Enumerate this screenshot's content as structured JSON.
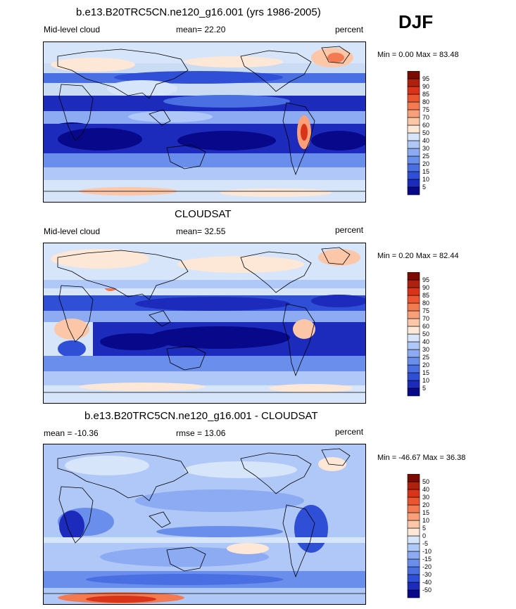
{
  "season": "DJF",
  "panels": [
    {
      "title": "b.e13.B20TRC5CN.ne120_g16.001 (yrs 1986-2005)",
      "left_label": "Mid-level cloud",
      "stat_label": "mean=  22.20",
      "units": "percent",
      "minmax": "Min =   0.00 Max =  83.48"
    },
    {
      "title": "CLOUDSAT",
      "left_label": "Mid-level cloud",
      "stat_label": "mean=  32.55",
      "units": "percent",
      "minmax": "Min =   0.20 Max =  82.44"
    },
    {
      "title": "b.e13.B20TRC5CN.ne120_g16.001 - CLOUDSAT",
      "left_label": "mean = -10.36",
      "stat_label": "rmse =  13.06",
      "units": "percent",
      "minmax": "Min = -46.67 Max =  36.38"
    }
  ],
  "chart_data": [
    {
      "type": "heatmap",
      "title": "b.e13.B20TRC5CN.ne120_g16.001 (yrs 1986-2005)",
      "variable": "Mid-level cloud",
      "units": "percent",
      "mean": 22.2,
      "min": 0.0,
      "max": 83.48,
      "colorbar_levels": [
        "5",
        "10",
        "15",
        "20",
        "25",
        "30",
        "40",
        "50",
        "60",
        "70",
        "75",
        "80",
        "85",
        "90",
        "95"
      ],
      "colorbar_colors": [
        "#08088a",
        "#1c2bbb",
        "#2f4fd6",
        "#4a6fe3",
        "#6a8eec",
        "#8cabf2",
        "#b0c8f7",
        "#d7e5fb",
        "#fde7d6",
        "#fcc7a8",
        "#f9a07a",
        "#f47a52",
        "#ec552f",
        "#d9341a",
        "#b0200e",
        "#7a0a02"
      ]
    },
    {
      "type": "heatmap",
      "title": "CLOUDSAT",
      "variable": "Mid-level cloud",
      "units": "percent",
      "mean": 32.55,
      "min": 0.2,
      "max": 82.44,
      "colorbar_levels": [
        "5",
        "10",
        "15",
        "20",
        "25",
        "30",
        "40",
        "50",
        "60",
        "70",
        "75",
        "80",
        "85",
        "90",
        "95"
      ],
      "colorbar_colors": [
        "#08088a",
        "#1c2bbb",
        "#2f4fd6",
        "#4a6fe3",
        "#6a8eec",
        "#8cabf2",
        "#b0c8f7",
        "#d7e5fb",
        "#fde7d6",
        "#fcc7a8",
        "#f9a07a",
        "#f47a52",
        "#ec552f",
        "#d9341a",
        "#b0200e",
        "#7a0a02"
      ]
    },
    {
      "type": "heatmap",
      "title": "b.e13.B20TRC5CN.ne120_g16.001 - CLOUDSAT",
      "units": "percent",
      "mean": -10.36,
      "rmse": 13.06,
      "min": -46.67,
      "max": 36.38,
      "colorbar_levels": [
        "-50",
        "-40",
        "-30",
        "-20",
        "-15",
        "-10",
        "-5",
        "0",
        "5",
        "10",
        "15",
        "20",
        "30",
        "40",
        "50"
      ],
      "colorbar_colors": [
        "#08088a",
        "#1c2bbb",
        "#2f4fd6",
        "#4a6fe3",
        "#6a8eec",
        "#8cabf2",
        "#b0c8f7",
        "#d7e5fb",
        "#fde7d6",
        "#fcc7a8",
        "#f9a07a",
        "#f47a52",
        "#ec552f",
        "#d9341a",
        "#b0200e",
        "#7a0a02"
      ]
    }
  ]
}
